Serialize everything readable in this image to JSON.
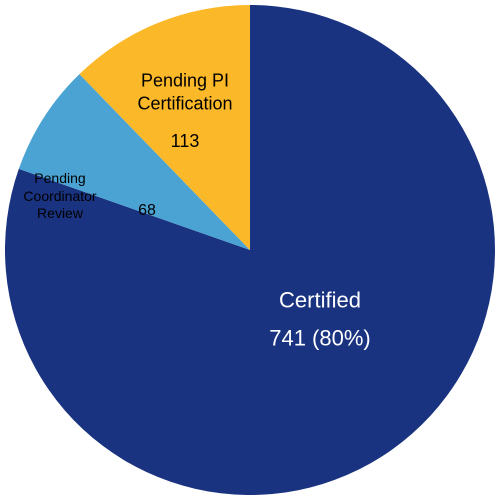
{
  "chart_data": {
    "type": "pie",
    "categories": [
      "Certified",
      "Pending Coordinator Review",
      "Pending PI Certification"
    ],
    "values": [
      741,
      68,
      113
    ],
    "value_labels": [
      "741 (80%)",
      "68",
      "113"
    ],
    "colors": [
      "#1a3380",
      "#4ba3d4",
      "#fbb829"
    ]
  }
}
